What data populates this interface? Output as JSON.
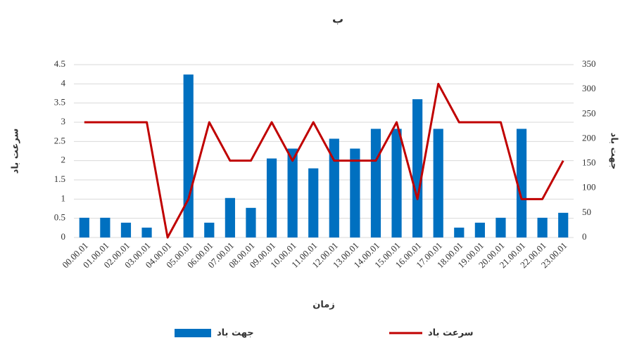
{
  "chart_data": {
    "type": "bar-line",
    "title": "ب",
    "x_label": "زمان",
    "y_label": "سرعت باد",
    "y2_label": "جهت باد",
    "categories": [
      "00.00.01",
      "01.00.01",
      "02.00.01",
      "03.00.01",
      "04.00.01",
      "05.00.01",
      "06.00.01",
      "07.00.01",
      "08.00.01",
      "09.00.01",
      "10.00.01",
      "11.00.01",
      "12.00.01",
      "13.00.01",
      "14.00.01",
      "15.00.01",
      "16.00.01",
      "17.00.01",
      "18.00.01",
      "19.00.01",
      "20.00.01",
      "21.00.01",
      "22.00.01",
      "23.00.01"
    ],
    "series": [
      {
        "name": "جهت باد",
        "type": "bar",
        "axis": "y2",
        "color": "#0070c0",
        "values": [
          40,
          40,
          30,
          20,
          0,
          330,
          30,
          80,
          60,
          160,
          180,
          140,
          200,
          180,
          220,
          220,
          280,
          220,
          20,
          30,
          40,
          220,
          40,
          50
        ]
      },
      {
        "name": "سرعت باد",
        "type": "line",
        "color": "#c00000",
        "values": [
          3,
          3,
          3,
          3,
          0,
          1,
          3,
          2,
          2,
          3,
          2,
          3,
          2,
          2,
          2,
          3,
          1,
          4,
          3,
          3,
          3,
          1,
          1,
          2
        ]
      }
    ],
    "ylim": [
      0,
      4.5
    ],
    "yticks": [
      0,
      0.5,
      1,
      1.5,
      2,
      2.5,
      3,
      3.5,
      4,
      4.5
    ],
    "y2lim": [
      0,
      350
    ],
    "y2ticks": [
      0,
      50,
      100,
      150,
      200,
      250,
      300,
      350
    ],
    "grid": true,
    "legend": "bottom"
  }
}
